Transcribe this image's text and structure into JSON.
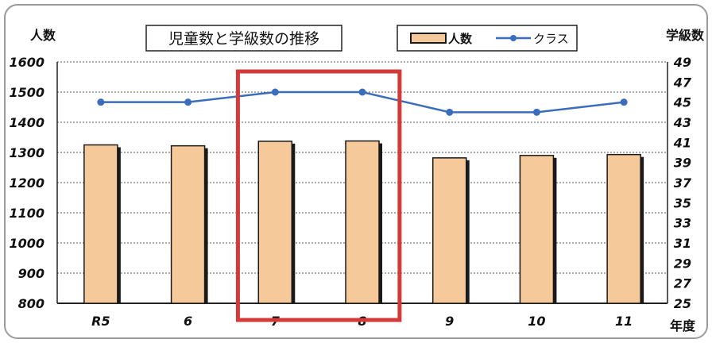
{
  "chart_data": {
    "type": "bar",
    "title": "児童数と学級数の推移",
    "categories": [
      "R5",
      "6",
      "7",
      "8",
      "9",
      "10",
      "11"
    ],
    "series": [
      {
        "name": "人数",
        "type": "bar",
        "axis": "left",
        "values": [
          1325,
          1322,
          1337,
          1338,
          1282,
          1290,
          1293
        ]
      },
      {
        "name": "クラス",
        "type": "line",
        "axis": "right",
        "values": [
          45,
          45,
          46,
          46,
          44,
          44,
          45
        ]
      }
    ],
    "y_left": {
      "label": "人数",
      "ylim": [
        800,
        1600
      ],
      "ticks": [
        800,
        900,
        1000,
        1100,
        1200,
        1300,
        1400,
        1500,
        1600
      ]
    },
    "y_right": {
      "label": "学級数",
      "ylim": [
        25,
        49
      ],
      "ticks": [
        25,
        27,
        29,
        31,
        33,
        35,
        37,
        39,
        41,
        43,
        45,
        47,
        49
      ]
    },
    "xlabel": "年度",
    "highlight_categories": [
      "7",
      "8"
    ],
    "grid": true,
    "legend": "top-right",
    "colors": {
      "bar_fill": "#f6c99a",
      "bar_edge": "#1a1a1a",
      "line": "#3a6ebd",
      "highlight": "#d43a3a",
      "grid": "#555555"
    }
  }
}
